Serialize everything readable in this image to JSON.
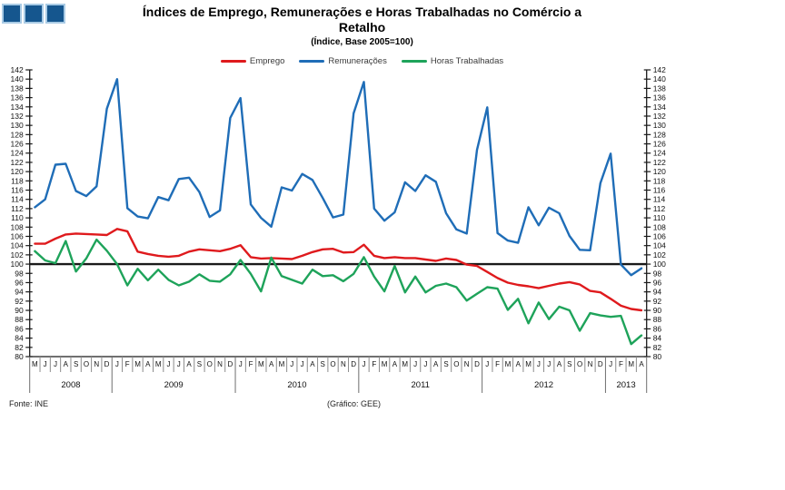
{
  "header": {
    "title_line1": "Índices de Emprego, Remunerações e Horas Trabalhadas no Comércio a",
    "title_line2": "Retalho",
    "subtitle": "(Índice, Base 2005=100)"
  },
  "legend": [
    {
      "label": "Emprego",
      "color": "#DF1A1D"
    },
    {
      "label": "Remunerações",
      "color": "#1F6DB7"
    },
    {
      "label": "Horas Trabalhadas",
      "color": "#1EA35A"
    }
  ],
  "footer": {
    "source": "Fonte: INE",
    "credit": "(Gráfico: GEE)"
  },
  "colors": {
    "axis": "#1a1a1a",
    "divider": "#8c8c8c",
    "reference_line": "#1a1a1a"
  },
  "chart_data": {
    "type": "line",
    "title": "Índices de Emprego, Remunerações e Horas Trabalhadas no Comércio a Retalho",
    "subtitle": "(Índice, Base 2005=100)",
    "ylim": [
      80,
      142
    ],
    "ytick_step": 2,
    "grid": false,
    "legend_position": "top",
    "reference_line": 100,
    "x_months": [
      "M",
      "J",
      "J",
      "A",
      "S",
      "O",
      "N",
      "D",
      "J",
      "F",
      "M",
      "A",
      "M",
      "J",
      "J",
      "A",
      "S",
      "O",
      "N",
      "D",
      "J",
      "F",
      "M",
      "A",
      "M",
      "J",
      "J",
      "A",
      "S",
      "O",
      "N",
      "D",
      "J",
      "F",
      "M",
      "A",
      "M",
      "J",
      "J",
      "A",
      "S",
      "O",
      "N",
      "D",
      "J",
      "F",
      "M",
      "A",
      "M",
      "J",
      "J",
      "A",
      "S",
      "O",
      "N",
      "D",
      "J",
      "F",
      "M",
      "A"
    ],
    "x_years": [
      {
        "label": "2008",
        "months": 8
      },
      {
        "label": "2009",
        "months": 12
      },
      {
        "label": "2010",
        "months": 12
      },
      {
        "label": "2011",
        "months": 12
      },
      {
        "label": "2012",
        "months": 12
      },
      {
        "label": "2013",
        "months": 4
      }
    ],
    "series": [
      {
        "name": "Emprego",
        "color": "#DF1A1D",
        "values": [
          104.4,
          104.4,
          105.5,
          106.4,
          106.6,
          106.5,
          106.4,
          106.3,
          107.6,
          107.1,
          102.7,
          102.2,
          101.8,
          101.6,
          101.8,
          102.7,
          103.2,
          103.0,
          102.8,
          103.3,
          104.1,
          101.5,
          101.2,
          101.3,
          101.2,
          101.1,
          101.8,
          102.6,
          103.2,
          103.3,
          102.5,
          102.6,
          104.2,
          101.8,
          101.3,
          101.5,
          101.3,
          101.3,
          101.0,
          100.7,
          101.2,
          100.9,
          99.9,
          99.6,
          98.3,
          97.0,
          96.0,
          95.5,
          95.2,
          94.8,
          95.3,
          95.8,
          96.1,
          95.6,
          94.2,
          93.9,
          92.5,
          91.0,
          90.3,
          90.0
        ]
      },
      {
        "name": "Remunerações",
        "color": "#1F6DB7",
        "values": [
          112.3,
          114.0,
          121.5,
          121.7,
          115.8,
          114.7,
          116.8,
          133.6,
          140.0,
          112.1,
          110.3,
          109.9,
          114.5,
          113.8,
          118.4,
          118.7,
          115.6,
          110.2,
          111.6,
          131.6,
          135.9,
          112.9,
          110.0,
          108.1,
          116.6,
          115.9,
          119.5,
          118.2,
          114.3,
          110.1,
          110.7,
          132.6,
          139.4,
          112.0,
          109.4,
          111.2,
          117.7,
          115.8,
          119.2,
          117.8,
          111.0,
          107.5,
          106.6,
          124.7,
          133.9,
          106.7,
          105.1,
          104.6,
          112.3,
          108.4,
          112.2,
          111.0,
          106.1,
          103.1,
          103.0,
          117.5,
          123.9,
          99.9,
          97.6,
          99.1
        ]
      },
      {
        "name": "Horas Trabalhadas",
        "color": "#1EA35A",
        "values": [
          102.8,
          100.8,
          100.2,
          105.0,
          98.4,
          101.2,
          105.3,
          102.9,
          100.0,
          95.4,
          99.0,
          96.5,
          98.8,
          96.6,
          95.4,
          96.2,
          97.8,
          96.4,
          96.2,
          97.8,
          100.9,
          97.9,
          94.1,
          101.4,
          97.4,
          96.6,
          95.8,
          98.8,
          97.4,
          97.6,
          96.3,
          97.9,
          101.5,
          97.3,
          94.1,
          99.6,
          93.9,
          97.3,
          93.9,
          95.3,
          95.8,
          95.0,
          92.1,
          93.6,
          95.0,
          94.7,
          90.1,
          92.5,
          87.2,
          91.7,
          88.1,
          90.8,
          90.0,
          85.6,
          89.4,
          88.9,
          88.6,
          88.8,
          82.7,
          84.6
        ]
      }
    ]
  }
}
